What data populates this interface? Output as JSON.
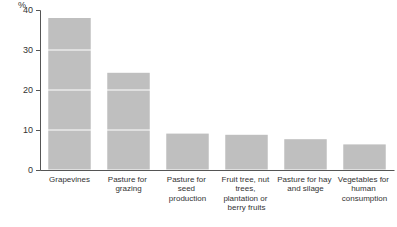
{
  "chart_data": {
    "type": "bar",
    "y_label": "%",
    "categories": [
      "Grapevines",
      "Pasture for grazing",
      "Pasture for seed production",
      "Fruit tree, nut trees, plantation or berry fruits",
      "Pasture for hay and silage",
      "Vegetables for human consumption"
    ],
    "values": [
      38,
      24.3,
      9.1,
      8.8,
      7.7,
      6.4
    ],
    "color": "#bfbfbf",
    "ylim": [
      0,
      40
    ],
    "yticks": [
      0,
      10,
      20,
      30,
      40
    ],
    "grid": true
  }
}
